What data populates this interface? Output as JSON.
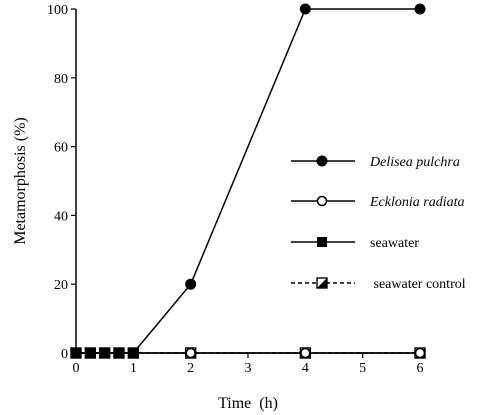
{
  "chart_data": {
    "type": "line",
    "title": "",
    "xlabel": "Time  (h)",
    "ylabel": "Metamorphosis (%)",
    "xlim": [
      0,
      6
    ],
    "ylim": [
      0,
      100
    ],
    "xticks": [
      "0",
      "1",
      "2",
      "3",
      "4",
      "5",
      "6"
    ],
    "yticks": [
      "0",
      "20",
      "40",
      "60",
      "80",
      "100"
    ],
    "grid": false,
    "legend_position": "right",
    "series": [
      {
        "name": "Delisea pulchra",
        "marker": "filled-circle",
        "line": "solid",
        "points": [
          [
            0,
            0
          ],
          [
            1,
            0
          ],
          [
            2,
            20
          ],
          [
            4,
            100
          ],
          [
            6,
            100
          ]
        ]
      },
      {
        "name": "Ecklonia radiata",
        "marker": "open-circle",
        "line": "solid",
        "points": [
          [
            0,
            0
          ],
          [
            1,
            0
          ],
          [
            2,
            0
          ],
          [
            4,
            0
          ],
          [
            6,
            0
          ]
        ]
      },
      {
        "name": "seawater",
        "marker": "filled-square",
        "line": "solid",
        "points": [
          [
            0,
            0
          ],
          [
            0.25,
            0
          ],
          [
            0.5,
            0
          ],
          [
            0.75,
            0
          ],
          [
            1,
            0
          ]
        ]
      },
      {
        "name": " seawater control",
        "marker": "half-square",
        "line": "dashed",
        "points": [
          [
            0,
            0
          ],
          [
            0.25,
            0
          ],
          [
            0.5,
            0
          ],
          [
            0.75,
            0
          ],
          [
            1,
            0
          ],
          [
            2,
            0
          ],
          [
            4,
            0
          ],
          [
            6,
            0
          ]
        ]
      }
    ]
  }
}
